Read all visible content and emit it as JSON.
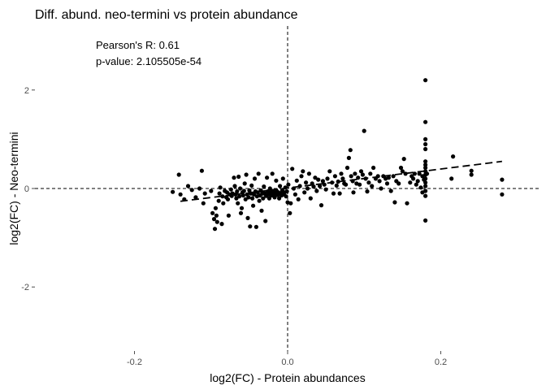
{
  "chart_data": {
    "type": "scatter",
    "title": "Diff. abund. neo-termini vs protein abundance",
    "xlabel": "log2(FC) - Protein abundances",
    "ylabel": "log2(FC) - Neo-termini",
    "annotations": [
      "Pearson's R: 0.61",
      "p-value: 2.105505e-54"
    ],
    "xlim": [
      -0.33,
      0.33
    ],
    "ylim": [
      -3.3,
      3.3
    ],
    "x_ticks": [
      {
        "value": -0.2,
        "label": "-0.2"
      },
      {
        "value": 0.0,
        "label": "0.0"
      },
      {
        "value": 0.2,
        "label": "0.2"
      }
    ],
    "y_ticks": [
      {
        "value": -2,
        "label": "-2"
      },
      {
        "value": 0,
        "label": "0"
      },
      {
        "value": 2,
        "label": "2"
      }
    ],
    "reference_lines": {
      "x": 0,
      "y": 0
    },
    "grid": false,
    "fit_line": {
      "x": [
        -0.14,
        0.28
      ],
      "y": [
        -0.26,
        0.55
      ]
    },
    "points": [
      [
        -0.142,
        0.28
      ],
      [
        -0.15,
        -0.07
      ],
      [
        -0.14,
        -0.12
      ],
      [
        -0.135,
        -0.22
      ],
      [
        -0.13,
        0.05
      ],
      [
        -0.125,
        -0.03
      ],
      [
        -0.12,
        -0.18
      ],
      [
        -0.115,
        0.0
      ],
      [
        -0.11,
        -0.3
      ],
      [
        -0.112,
        0.36
      ],
      [
        -0.108,
        -0.1
      ],
      [
        -0.1,
        -0.05
      ],
      [
        -0.098,
        -0.5
      ],
      [
        -0.096,
        -0.62
      ],
      [
        -0.095,
        -0.82
      ],
      [
        -0.094,
        -0.4
      ],
      [
        -0.093,
        -0.55
      ],
      [
        -0.092,
        -0.68
      ],
      [
        -0.09,
        -0.25
      ],
      [
        -0.089,
        -0.1
      ],
      [
        -0.088,
        0.02
      ],
      [
        -0.086,
        -0.72
      ],
      [
        -0.085,
        -0.16
      ],
      [
        -0.084,
        -0.3
      ],
      [
        -0.082,
        -0.05
      ],
      [
        -0.08,
        -0.18
      ],
      [
        -0.079,
        -0.08
      ],
      [
        -0.078,
        -0.22
      ],
      [
        -0.077,
        -0.55
      ],
      [
        -0.076,
        -0.12
      ],
      [
        -0.074,
        -0.02
      ],
      [
        -0.073,
        -0.15
      ],
      [
        -0.072,
        -0.1
      ],
      [
        -0.07,
        0.22
      ],
      [
        -0.069,
        0.05
      ],
      [
        -0.068,
        -0.12
      ],
      [
        -0.067,
        -0.2
      ],
      [
        -0.066,
        -0.06
      ],
      [
        -0.065,
        -0.3
      ],
      [
        -0.064,
        0.24
      ],
      [
        -0.063,
        -0.16
      ],
      [
        -0.062,
        0.0
      ],
      [
        -0.061,
        -0.5
      ],
      [
        -0.06,
        -0.4
      ],
      [
        -0.059,
        -0.08
      ],
      [
        -0.058,
        -0.14
      ],
      [
        -0.057,
        -0.05
      ],
      [
        -0.056,
        0.1
      ],
      [
        -0.055,
        -0.22
      ],
      [
        -0.054,
        0.28
      ],
      [
        -0.053,
        -0.12
      ],
      [
        -0.052,
        -0.6
      ],
      [
        -0.051,
        -0.18
      ],
      [
        -0.05,
        -0.04
      ],
      [
        -0.049,
        -0.77
      ],
      [
        -0.048,
        -0.1
      ],
      [
        -0.047,
        0.06
      ],
      [
        -0.046,
        -0.2
      ],
      [
        -0.045,
        -0.35
      ],
      [
        -0.044,
        -0.12
      ],
      [
        -0.043,
        0.2
      ],
      [
        -0.042,
        -0.06
      ],
      [
        -0.041,
        -0.78
      ],
      [
        -0.04,
        -0.16
      ],
      [
        -0.039,
        -0.08
      ],
      [
        -0.038,
        0.3
      ],
      [
        -0.037,
        -0.25
      ],
      [
        -0.036,
        -0.14
      ],
      [
        -0.035,
        -0.04
      ],
      [
        -0.034,
        -0.45
      ],
      [
        -0.033,
        -0.1
      ],
      [
        -0.032,
        -0.2
      ],
      [
        -0.031,
        0.04
      ],
      [
        -0.03,
        -0.1
      ],
      [
        -0.029,
        -0.66
      ],
      [
        -0.028,
        -0.15
      ],
      [
        -0.027,
        0.22
      ],
      [
        -0.026,
        -0.06
      ],
      [
        -0.025,
        -0.12
      ],
      [
        -0.024,
        -0.2
      ],
      [
        -0.023,
        0.0
      ],
      [
        -0.022,
        -0.08
      ],
      [
        -0.021,
        -0.14
      ],
      [
        -0.02,
        0.3
      ],
      [
        -0.019,
        -0.05
      ],
      [
        -0.018,
        -0.12
      ],
      [
        -0.017,
        -0.18
      ],
      [
        -0.016,
        -0.1
      ],
      [
        -0.015,
        0.16
      ],
      [
        -0.014,
        -0.06
      ],
      [
        -0.013,
        -0.13
      ],
      [
        -0.012,
        -0.08
      ],
      [
        -0.011,
        -0.2
      ],
      [
        -0.01,
        0.05
      ],
      [
        -0.009,
        -0.1
      ],
      [
        -0.008,
        -0.14
      ],
      [
        -0.007,
        -0.04
      ],
      [
        -0.006,
        0.2
      ],
      [
        -0.005,
        -0.12
      ],
      [
        -0.004,
        -0.08
      ],
      [
        -0.003,
        0.02
      ],
      [
        -0.002,
        -0.16
      ],
      [
        -0.001,
        -0.06
      ],
      [
        0.0,
        -0.28
      ],
      [
        0.001,
        0.08
      ],
      [
        0.003,
        -0.5
      ],
      [
        0.004,
        -0.3
      ],
      [
        0.006,
        0.4
      ],
      [
        0.008,
        0.0
      ],
      [
        0.01,
        -0.12
      ],
      [
        0.012,
        0.16
      ],
      [
        0.014,
        -0.22
      ],
      [
        0.016,
        0.05
      ],
      [
        0.018,
        0.25
      ],
      [
        0.02,
        0.35
      ],
      [
        0.022,
        -0.08
      ],
      [
        0.024,
        0.12
      ],
      [
        0.026,
        0.0
      ],
      [
        0.028,
        0.3
      ],
      [
        0.03,
        -0.2
      ],
      [
        0.032,
        0.1
      ],
      [
        0.034,
        0.04
      ],
      [
        0.036,
        0.22
      ],
      [
        0.038,
        -0.05
      ],
      [
        0.04,
        0.18
      ],
      [
        0.042,
        0.05
      ],
      [
        0.044,
        -0.34
      ],
      [
        0.046,
        0.15
      ],
      [
        0.048,
        0.08
      ],
      [
        0.05,
        -0.02
      ],
      [
        0.052,
        0.2
      ],
      [
        0.055,
        0.35
      ],
      [
        0.058,
        0.12
      ],
      [
        0.06,
        -0.1
      ],
      [
        0.062,
        0.25
      ],
      [
        0.064,
        0.06
      ],
      [
        0.066,
        0.14
      ],
      [
        0.068,
        -0.1
      ],
      [
        0.07,
        0.3
      ],
      [
        0.072,
        0.2
      ],
      [
        0.074,
        0.1
      ],
      [
        0.076,
        0.08
      ],
      [
        0.078,
        0.42
      ],
      [
        0.08,
        0.62
      ],
      [
        0.082,
        0.78
      ],
      [
        0.083,
        0.25
      ],
      [
        0.085,
        0.15
      ],
      [
        0.086,
        -0.08
      ],
      [
        0.088,
        0.3
      ],
      [
        0.09,
        0.1
      ],
      [
        0.092,
        0.22
      ],
      [
        0.094,
        0.08
      ],
      [
        0.096,
        0.35
      ],
      [
        0.098,
        0.28
      ],
      [
        0.1,
        1.17
      ],
      [
        0.102,
        0.2
      ],
      [
        0.104,
        -0.06
      ],
      [
        0.106,
        0.12
      ],
      [
        0.108,
        0.3
      ],
      [
        0.11,
        0.05
      ],
      [
        0.112,
        0.42
      ],
      [
        0.115,
        0.2
      ],
      [
        0.118,
        0.25
      ],
      [
        0.12,
        0.15
      ],
      [
        0.122,
        0.0
      ],
      [
        0.125,
        0.25
      ],
      [
        0.128,
        0.2
      ],
      [
        0.13,
        0.1
      ],
      [
        0.132,
        0.22
      ],
      [
        0.135,
        -0.05
      ],
      [
        0.138,
        0.25
      ],
      [
        0.14,
        -0.28
      ],
      [
        0.142,
        0.15
      ],
      [
        0.145,
        0.1
      ],
      [
        0.148,
        0.42
      ],
      [
        0.15,
        0.35
      ],
      [
        0.152,
        0.6
      ],
      [
        0.154,
        0.3
      ],
      [
        0.156,
        -0.3
      ],
      [
        0.16,
        0.12
      ],
      [
        0.162,
        0.25
      ],
      [
        0.164,
        0.2
      ],
      [
        0.166,
        0.3
      ],
      [
        0.168,
        0.08
      ],
      [
        0.17,
        0.15
      ],
      [
        0.172,
        0.3
      ],
      [
        0.174,
        0.02
      ],
      [
        0.176,
        0.25
      ],
      [
        0.18,
        2.2
      ],
      [
        0.18,
        1.35
      ],
      [
        0.18,
        1.0
      ],
      [
        0.18,
        0.9
      ],
      [
        0.18,
        0.8
      ],
      [
        0.18,
        0.55
      ],
      [
        0.18,
        0.48
      ],
      [
        0.18,
        0.42
      ],
      [
        0.18,
        0.35
      ],
      [
        0.18,
        0.28
      ],
      [
        0.18,
        0.2
      ],
      [
        0.18,
        0.12
      ],
      [
        0.18,
        0.05
      ],
      [
        0.18,
        -0.05
      ],
      [
        0.18,
        -0.15
      ],
      [
        0.18,
        -0.65
      ],
      [
        0.178,
        0.18
      ],
      [
        0.182,
        0.3
      ],
      [
        0.176,
        -0.08
      ],
      [
        0.214,
        0.2
      ],
      [
        0.216,
        0.65
      ],
      [
        0.24,
        0.28
      ],
      [
        0.24,
        0.36
      ],
      [
        0.28,
        0.18
      ],
      [
        0.28,
        -0.12
      ]
    ]
  }
}
